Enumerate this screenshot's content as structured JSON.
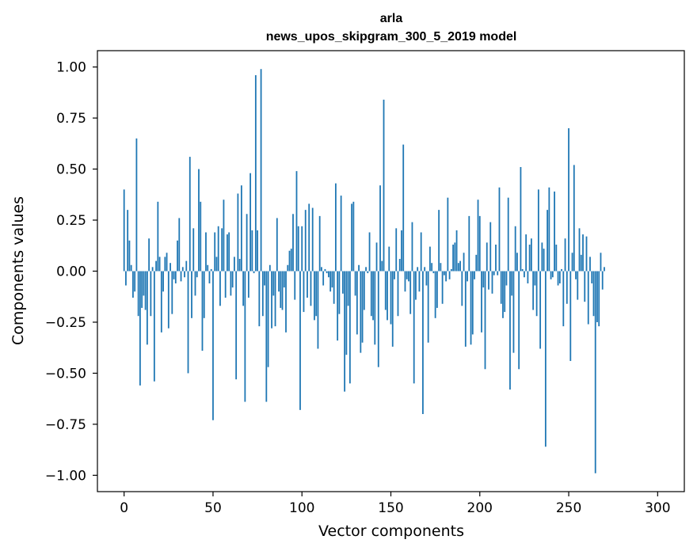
{
  "chart_data": {
    "type": "bar",
    "title_line1": "arla",
    "title_line2": "news_upos_skipgram_300_5_2019 model",
    "xlabel": "Vector components",
    "ylabel": "Components values",
    "xlim": [
      -15,
      315
    ],
    "ylim": [
      -1.08,
      1.08
    ],
    "x_ticks": [
      0,
      50,
      100,
      150,
      200,
      250,
      300
    ],
    "x_tick_labels": [
      "0",
      "50",
      "100",
      "150",
      "200",
      "250",
      "300"
    ],
    "y_ticks": [
      1.0,
      0.75,
      0.5,
      0.25,
      0.0,
      -0.25,
      -0.5,
      -0.75,
      -1.0
    ],
    "y_tick_labels": [
      "1.00",
      "0.75",
      "0.50",
      "0.25",
      "0.00",
      "−0.25",
      "−0.50",
      "−0.75",
      "−1.00"
    ],
    "bar_color": "#1f77b4",
    "grid": false,
    "values": [
      0.4,
      -0.07,
      0.3,
      0.15,
      0.03,
      -0.13,
      -0.1,
      0.65,
      -0.22,
      -0.56,
      -0.18,
      -0.12,
      -0.19,
      -0.36,
      0.16,
      -0.22,
      0.02,
      -0.54,
      0.05,
      0.34,
      0.07,
      -0.3,
      -0.1,
      0.07,
      0.09,
      -0.28,
      0.04,
      -0.21,
      -0.04,
      -0.06,
      0.15,
      0.26,
      -0.05,
      0.02,
      -0.03,
      0.05,
      -0.5,
      0.56,
      -0.23,
      0.21,
      -0.12,
      -0.03,
      0.5,
      0.34,
      -0.39,
      -0.23,
      0.19,
      0.03,
      -0.06,
      0.01,
      -0.73,
      0.19,
      0.07,
      0.22,
      -0.17,
      0.21,
      0.35,
      -0.13,
      0.18,
      0.19,
      -0.12,
      -0.08,
      0.07,
      -0.53,
      0.38,
      0.06,
      0.42,
      -0.17,
      -0.64,
      0.28,
      -0.13,
      0.48,
      0.2,
      -0.01,
      0.96,
      0.2,
      -0.27,
      0.99,
      -0.22,
      -0.07,
      -0.64,
      -0.47,
      0.03,
      -0.28,
      -0.12,
      -0.27,
      0.26,
      -0.1,
      -0.18,
      -0.19,
      -0.08,
      -0.3,
      0.03,
      0.1,
      0.11,
      0.28,
      -0.14,
      0.49,
      0.22,
      -0.68,
      0.22,
      -0.2,
      0.3,
      -0.13,
      0.33,
      -0.17,
      0.31,
      -0.24,
      -0.22,
      -0.38,
      0.27,
      0.02,
      -0.07,
      0.01,
      -0.01,
      -0.03,
      -0.1,
      -0.08,
      -0.16,
      0.43,
      -0.34,
      -0.21,
      0.37,
      -0.11,
      -0.59,
      -0.41,
      -0.17,
      -0.55,
      0.33,
      0.34,
      -0.12,
      -0.31,
      0.03,
      -0.4,
      -0.35,
      -0.19,
      0.02,
      -0.01,
      0.19,
      -0.22,
      -0.24,
      -0.36,
      0.14,
      -0.47,
      0.42,
      0.05,
      0.84,
      -0.19,
      -0.24,
      0.12,
      -0.26,
      -0.37,
      -0.04,
      0.21,
      -0.22,
      0.06,
      0.2,
      0.62,
      -0.1,
      -0.04,
      -0.05,
      -0.21,
      0.24,
      -0.55,
      -0.14,
      0.02,
      -0.1,
      0.19,
      -0.7,
      0.02,
      -0.07,
      -0.35,
      0.12,
      0.04,
      -0.01,
      -0.23,
      -0.18,
      0.3,
      0.04,
      -0.16,
      -0.02,
      -0.05,
      0.36,
      -0.04,
      0.01,
      0.13,
      0.14,
      0.2,
      0.04,
      0.05,
      -0.17,
      0.09,
      -0.37,
      -0.05,
      0.27,
      -0.36,
      -0.31,
      -0.04,
      0.08,
      0.35,
      0.27,
      -0.3,
      -0.08,
      -0.48,
      0.14,
      -0.09,
      0.24,
      -0.11,
      -0.02,
      0.13,
      -0.02,
      0.41,
      -0.16,
      -0.23,
      -0.2,
      -0.07,
      0.36,
      -0.58,
      -0.12,
      -0.4,
      0.22,
      0.09,
      -0.48,
      0.51,
      0.01,
      -0.03,
      0.18,
      -0.06,
      0.13,
      0.16,
      -0.19,
      -0.07,
      -0.22,
      0.4,
      -0.38,
      0.14,
      0.11,
      -0.86,
      0.3,
      0.41,
      -0.04,
      -0.03,
      0.39,
      0.13,
      -0.07,
      -0.06,
      0.01,
      -0.27,
      0.16,
      -0.16,
      0.7,
      -0.44,
      0.09,
      0.52,
      -0.04,
      -0.14,
      0.21,
      0.08,
      0.18,
      -0.15,
      0.17,
      -0.26,
      0.07,
      -0.06,
      -0.22,
      -0.99,
      -0.25,
      -0.27,
      0.09,
      -0.09,
      0.02
    ]
  }
}
